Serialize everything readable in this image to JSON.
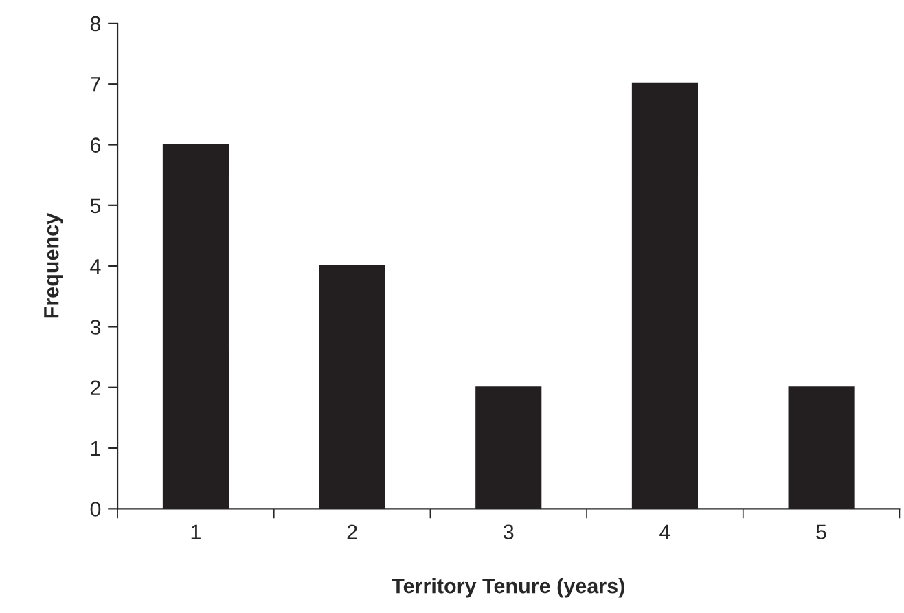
{
  "chart_data": {
    "type": "bar",
    "xlabel": "Territory Tenure (years)",
    "ylabel": "Frequency",
    "categories": [
      "1",
      "2",
      "3",
      "4",
      "5"
    ],
    "values": [
      6,
      4,
      2,
      7,
      2
    ],
    "color": "#231f20",
    "ylim": [
      0,
      8
    ],
    "yticks": [
      0,
      1,
      2,
      3,
      4,
      5,
      6,
      7,
      8
    ],
    "grid": false,
    "legend": false
  }
}
